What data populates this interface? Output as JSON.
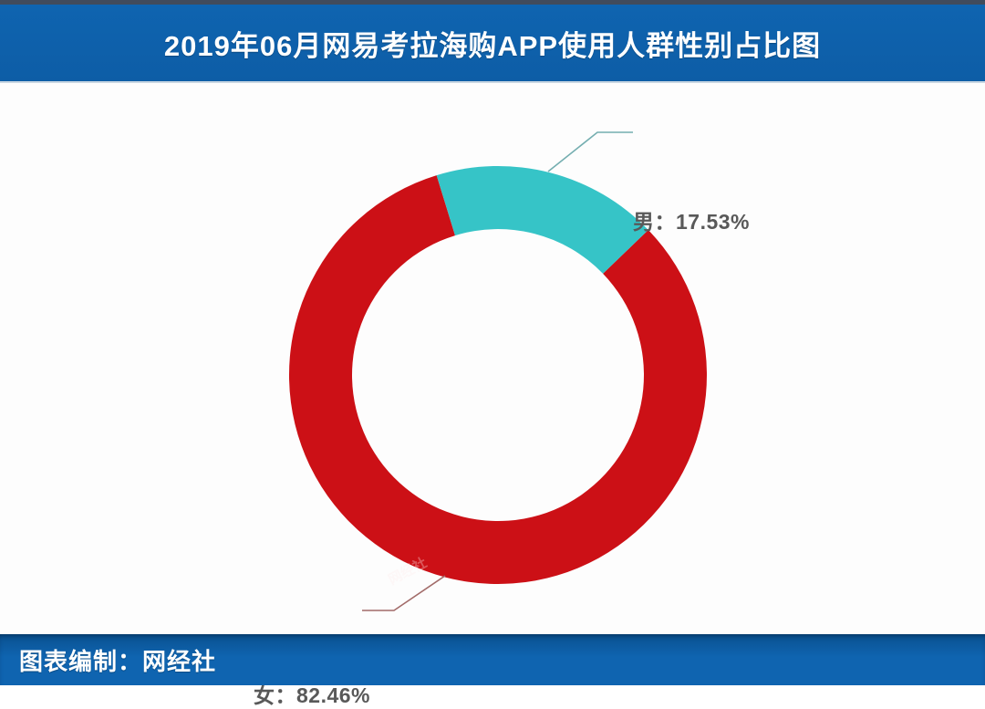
{
  "header": {
    "title": "2019年06月网易考拉海购APP使用人群性别占比图",
    "bar_color": "#0f64b0",
    "top_strip_color": "#414b5c",
    "text_color": "#ffffff"
  },
  "chart_data": {
    "type": "pie",
    "donut": true,
    "title": "2019年06月网易考拉海购APP使用人群性别占比图",
    "categories": [
      "男",
      "女"
    ],
    "series": [
      {
        "name": "男",
        "value": 17.53,
        "color": "#36c4c7",
        "label": "男：17.53%",
        "leader_color": "#74aeb0"
      },
      {
        "name": "女",
        "value": 82.46,
        "color": "#cc1016",
        "label": "女：82.46%",
        "leader_color": "#a26b69"
      }
    ],
    "unit": "%",
    "start_angle_deg": -17.1,
    "inner_radius_ratio": 0.7,
    "legend_position": "none",
    "label_text_color": "#595959"
  },
  "watermark": {
    "text": "网经社"
  },
  "footer": {
    "text": "图表编制：网经社",
    "bar_color": "#0f64b0"
  }
}
